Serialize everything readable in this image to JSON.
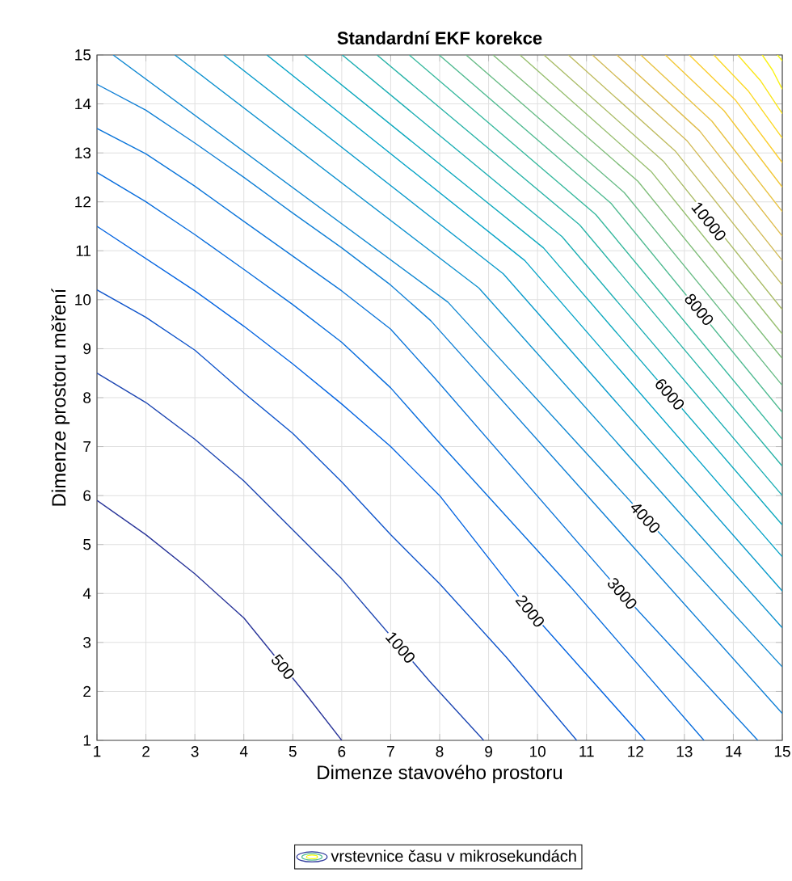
{
  "chart_data": {
    "type": "line",
    "title": "Standardní EKF korekce",
    "xlabel": "Dimenze stavového prostoru",
    "ylabel": "Dimenze prostoru měření",
    "xlim": [
      1,
      15
    ],
    "ylim": [
      1,
      15
    ],
    "xticks": [
      1,
      2,
      3,
      4,
      5,
      6,
      7,
      8,
      9,
      10,
      11,
      12,
      13,
      14,
      15
    ],
    "yticks": [
      1,
      2,
      3,
      4,
      5,
      6,
      7,
      8,
      9,
      10,
      11,
      12,
      13,
      14,
      15
    ],
    "grid": true,
    "legend": "bottom",
    "series": [
      {
        "name": "vrstevnice času v mikrosekundách",
        "color": "#2a369a",
        "x": [
          1,
          2,
          3,
          4,
          5.3,
          6
        ],
        "values": [
          5.9,
          5.2,
          4.4,
          3.5,
          1.9,
          1
        ]
      },
      {
        "color": "#1d46b2",
        "x": [
          1,
          2,
          3,
          4,
          5,
          6,
          7.8,
          8.9
        ],
        "values": [
          8.5,
          7.9,
          7.15,
          6.3,
          5.3,
          4.3,
          2.2,
          1
        ]
      },
      {
        "color": "#1055cb",
        "x": [
          1,
          2,
          3,
          4,
          5,
          6,
          7,
          8,
          9.36,
          10.8
        ],
        "values": [
          10.2,
          9.64,
          8.97,
          8.1,
          7.27,
          6.28,
          5.2,
          4.2,
          2.7,
          1
        ]
      },
      {
        "color": "#0464e1",
        "x": [
          1,
          2,
          3,
          4,
          5,
          6,
          7,
          8,
          9.85,
          12.2
        ],
        "values": [
          11.5,
          10.84,
          10.18,
          9.46,
          8.69,
          7.87,
          7.0,
          6.0,
          3.64,
          1
        ]
      },
      {
        "color": "#086ddd",
        "x": [
          1,
          2,
          3,
          4,
          5,
          6,
          7,
          7.93,
          10.68,
          13.4
        ],
        "values": [
          12.6,
          12.0,
          11.33,
          10.62,
          9.9,
          9.13,
          8.2,
          7.15,
          4.13,
          1
        ]
      },
      {
        "color": "#0d76da",
        "x": [
          1,
          2,
          3,
          4,
          5,
          6,
          7,
          7.9,
          11.73,
          14.5
        ],
        "values": [
          13.5,
          12.98,
          12.32,
          11.6,
          10.89,
          10.18,
          9.4,
          8.4,
          4.0,
          1
        ]
      },
      {
        "color": "#1180d6",
        "x": [
          1,
          2,
          3,
          4,
          5,
          6,
          7,
          7.82,
          12,
          15
        ],
        "values": [
          14.4,
          13.87,
          13.2,
          12.5,
          11.77,
          11.06,
          10.3,
          9.57,
          4.9,
          1.55
        ]
      },
      {
        "color": "#1289d2",
        "x": [
          1.33,
          8.17,
          15
        ],
        "values": [
          15,
          9.95,
          2.5
        ]
      },
      {
        "color": "#0f92cf",
        "x": [
          2.59,
          8.8,
          15
        ],
        "values": [
          15,
          10.24,
          3.3
        ]
      },
      {
        "color": "#0b9bcb",
        "x": [
          3.59,
          9.3,
          15
        ],
        "values": [
          15,
          10.53,
          4.05
        ]
      },
      {
        "color": "#07a4c7",
        "x": [
          4.47,
          9.74,
          15
        ],
        "values": [
          15,
          10.8,
          4.75
        ]
      },
      {
        "color": "#10aabe",
        "x": [
          5.24,
          10.12,
          15
        ],
        "values": [
          15,
          11.06,
          5.4
        ]
      },
      {
        "color": "#1dafb4",
        "x": [
          6.01,
          10.5,
          15
        ],
        "values": [
          15,
          11.29,
          6.0
        ]
      },
      {
        "color": "#2bb4a8",
        "x": [
          6.72,
          10.86,
          15
        ],
        "values": [
          15,
          11.53,
          6.6
        ]
      },
      {
        "color": "#38b99e",
        "x": [
          7.38,
          11.19,
          15
        ],
        "values": [
          15,
          11.74,
          7.15
        ]
      },
      {
        "color": "#51bb92",
        "x": [
          7.99,
          11.5,
          15
        ],
        "values": [
          15,
          11.97,
          7.7
        ]
      },
      {
        "color": "#69bc87",
        "x": [
          8.54,
          11.77,
          15
        ],
        "values": [
          15,
          12.19,
          8.25
        ]
      },
      {
        "color": "#81be7b",
        "x": [
          9.09,
          12.05,
          15
        ],
        "values": [
          15,
          12.42,
          8.8
        ]
      },
      {
        "color": "#98bf70",
        "x": [
          9.64,
          12.32,
          15
        ],
        "values": [
          15,
          12.62,
          9.3
        ]
      },
      {
        "color": "#abbd69",
        "x": [
          10.13,
          12.57,
          15
        ],
        "values": [
          15,
          12.83,
          9.8
        ]
      },
      {
        "color": "#bfbc61",
        "x": [
          10.63,
          12.82,
          15
        ],
        "values": [
          15,
          13.03,
          10.3
        ]
      },
      {
        "color": "#d2bb59",
        "x": [
          11.12,
          13.06,
          15
        ],
        "values": [
          15,
          13.24,
          10.8
        ]
      },
      {
        "color": "#dfbd4f",
        "x": [
          11.62,
          13.31,
          15
        ],
        "values": [
          15,
          13.45,
          11.3
        ]
      },
      {
        "color": "#e8c344",
        "x": [
          12.11,
          13.56,
          15
        ],
        "values": [
          15,
          13.65,
          11.8
        ]
      },
      {
        "color": "#f2c83a",
        "x": [
          12.61,
          13.81,
          15
        ],
        "values": [
          15,
          13.86,
          12.3
        ]
      },
      {
        "color": "#fbce2f",
        "x": [
          13.1,
          14.05,
          15
        ],
        "values": [
          15,
          14.07,
          12.8
        ]
      },
      {
        "color": "#fbd926",
        "x": [
          13.6,
          14.3,
          15
        ],
        "values": [
          15,
          14.27,
          13.3
        ]
      },
      {
        "color": "#fae61d",
        "x": [
          14.09,
          14.55,
          15
        ],
        "values": [
          15,
          14.48,
          13.8
        ]
      },
      {
        "color": "#faf215",
        "x": [
          14.59,
          14.8,
          15
        ],
        "values": [
          15,
          14.69,
          14.3
        ]
      },
      {
        "color": "#f9fb0e",
        "x": [
          14.9,
          15
        ],
        "values": [
          15,
          14.88
        ]
      }
    ],
    "annotations": [
      {
        "text": "500",
        "x": 4.8,
        "y": 2.5
      },
      {
        "text": "1000",
        "x": 7.2,
        "y": 2.9
      },
      {
        "text": "2000",
        "x": 9.85,
        "y": 3.64
      },
      {
        "text": "3000",
        "x": 11.73,
        "y": 4.0
      },
      {
        "text": "4000",
        "x": 12.2,
        "y": 5.55
      },
      {
        "text": "6000",
        "x": 12.7,
        "y": 8.07
      },
      {
        "text": "8000",
        "x": 13.3,
        "y": 9.8
      },
      {
        "text": "10000",
        "x": 13.5,
        "y": 11.6
      }
    ]
  }
}
